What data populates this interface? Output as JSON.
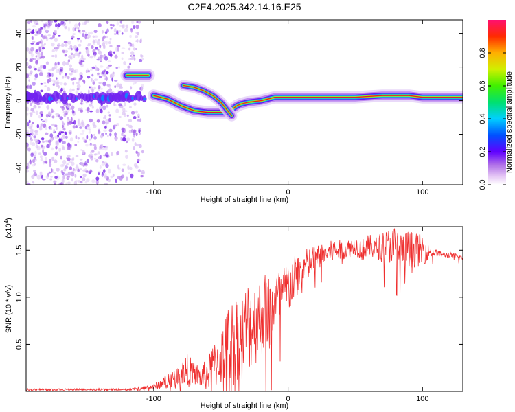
{
  "title": "C2E4.2025.342.14.16.E25",
  "colors": {
    "snr_line": "#ef3030",
    "scatter_purple": "#8a2be2",
    "track_core": "#e0202a"
  },
  "chart_data": [
    {
      "type": "heatmap",
      "title": "C2E4.2025.342.14.16.E25",
      "xlabel": "Height of straight line (km)",
      "ylabel": "Frequency (Hz)",
      "xlim": [
        -195,
        130
      ],
      "ylim": [
        -50,
        48
      ],
      "xticks": [
        -100,
        0,
        100
      ],
      "yticks": [
        -40,
        -20,
        0,
        20,
        40
      ],
      "xtick_labels": [
        "-100",
        "0",
        "100"
      ],
      "ytick_labels": [
        "-40",
        "-20",
        "0",
        "20",
        "40"
      ],
      "colorbar": {
        "label": "Normalized spectral amplitude",
        "range": [
          0,
          1
        ],
        "ticks": [
          0.0,
          0.2,
          0.4,
          0.6,
          0.8
        ],
        "tick_labels": [
          "0.0",
          "0.2",
          "0.4",
          "0.6",
          "0.8"
        ]
      },
      "tracks": [
        {
          "name": "main",
          "points": [
            [
              -195,
              2
            ],
            [
              -170,
              2
            ],
            [
              -150,
              2
            ],
            [
              -130,
              2
            ],
            [
              -110,
              3
            ],
            [
              -100,
              3
            ],
            [
              -90,
              1
            ],
            [
              -80,
              -3
            ],
            [
              -70,
              -6
            ],
            [
              -60,
              -7
            ],
            [
              -50,
              -7
            ],
            [
              -45,
              -7
            ],
            [
              -38,
              -3
            ],
            [
              -35,
              -2
            ],
            [
              -30,
              -1
            ],
            [
              -20,
              0
            ],
            [
              -10,
              2
            ],
            [
              0,
              2
            ],
            [
              10,
              2
            ],
            [
              30,
              2
            ],
            [
              50,
              2
            ],
            [
              70,
              3
            ],
            [
              90,
              3
            ],
            [
              100,
              2
            ],
            [
              130,
              2
            ]
          ]
        },
        {
          "name": "upper-branch",
          "points": [
            [
              -78,
              9
            ],
            [
              -70,
              8
            ],
            [
              -63,
              6
            ],
            [
              -56,
              3
            ],
            [
              -50,
              -1
            ],
            [
              -45,
              -6
            ],
            [
              -42,
              -9
            ]
          ]
        },
        {
          "name": "high-blob",
          "points": [
            [
              -120,
              15
            ],
            [
              -104,
              15
            ]
          ]
        }
      ]
    },
    {
      "type": "line",
      "title": "",
      "xlabel": "Height of straight line (km)",
      "ylabel": "SNR (10 * v/v)",
      "yscale_label": "(x10",
      "yscale_exponent": "4",
      "xlim": [
        -195,
        130
      ],
      "ylim": [
        0,
        1.75
      ],
      "xticks": [
        -100,
        0,
        100
      ],
      "yticks": [
        0.5,
        1.0,
        1.5
      ],
      "xtick_labels": [
        "-100",
        "0",
        "100"
      ],
      "ytick_labels": [
        "0.5",
        "1.0",
        "1.5"
      ],
      "series": [
        {
          "name": "SNR",
          "x": [
            -195,
            -180,
            -160,
            -140,
            -120,
            -110,
            -100,
            -95,
            -90,
            -85,
            -80,
            -75,
            -70,
            -65,
            -60,
            -55,
            -50,
            -45,
            -40,
            -35,
            -30,
            -25,
            -20,
            -15,
            -10,
            -5,
            0,
            5,
            10,
            15,
            20,
            25,
            30,
            35,
            40,
            45,
            50,
            55,
            60,
            65,
            70,
            75,
            80,
            85,
            90,
            95,
            100,
            105,
            110,
            115,
            120,
            130
          ],
          "y": [
            0.02,
            0.02,
            0.02,
            0.02,
            0.02,
            0.03,
            0.05,
            0.08,
            0.12,
            0.15,
            0.2,
            0.22,
            0.2,
            0.15,
            0.18,
            0.28,
            0.35,
            0.5,
            0.55,
            0.6,
            0.7,
            0.72,
            0.8,
            0.88,
            0.95,
            1.0,
            1.1,
            1.2,
            1.3,
            1.35,
            1.4,
            1.45,
            1.47,
            1.5,
            1.5,
            1.52,
            1.55,
            1.5,
            1.55,
            1.52,
            1.55,
            1.55,
            1.52,
            1.5,
            1.52,
            1.5,
            1.5,
            1.48,
            1.47,
            1.45,
            1.45,
            1.42
          ],
          "noise_amplitude": [
            0.01,
            0.01,
            0.01,
            0.01,
            0.01,
            0.02,
            0.03,
            0.05,
            0.08,
            0.08,
            0.12,
            0.18,
            0.12,
            0.12,
            0.18,
            0.25,
            0.3,
            0.4,
            0.5,
            0.4,
            0.5,
            0.45,
            0.45,
            0.4,
            0.35,
            0.3,
            0.3,
            0.25,
            0.2,
            0.18,
            0.15,
            0.12,
            0.12,
            0.12,
            0.1,
            0.1,
            0.1,
            0.12,
            0.12,
            0.12,
            0.15,
            0.18,
            0.25,
            0.2,
            0.2,
            0.18,
            0.18,
            0.06,
            0.04,
            0.03,
            0.03,
            0.03
          ]
        }
      ]
    }
  ]
}
